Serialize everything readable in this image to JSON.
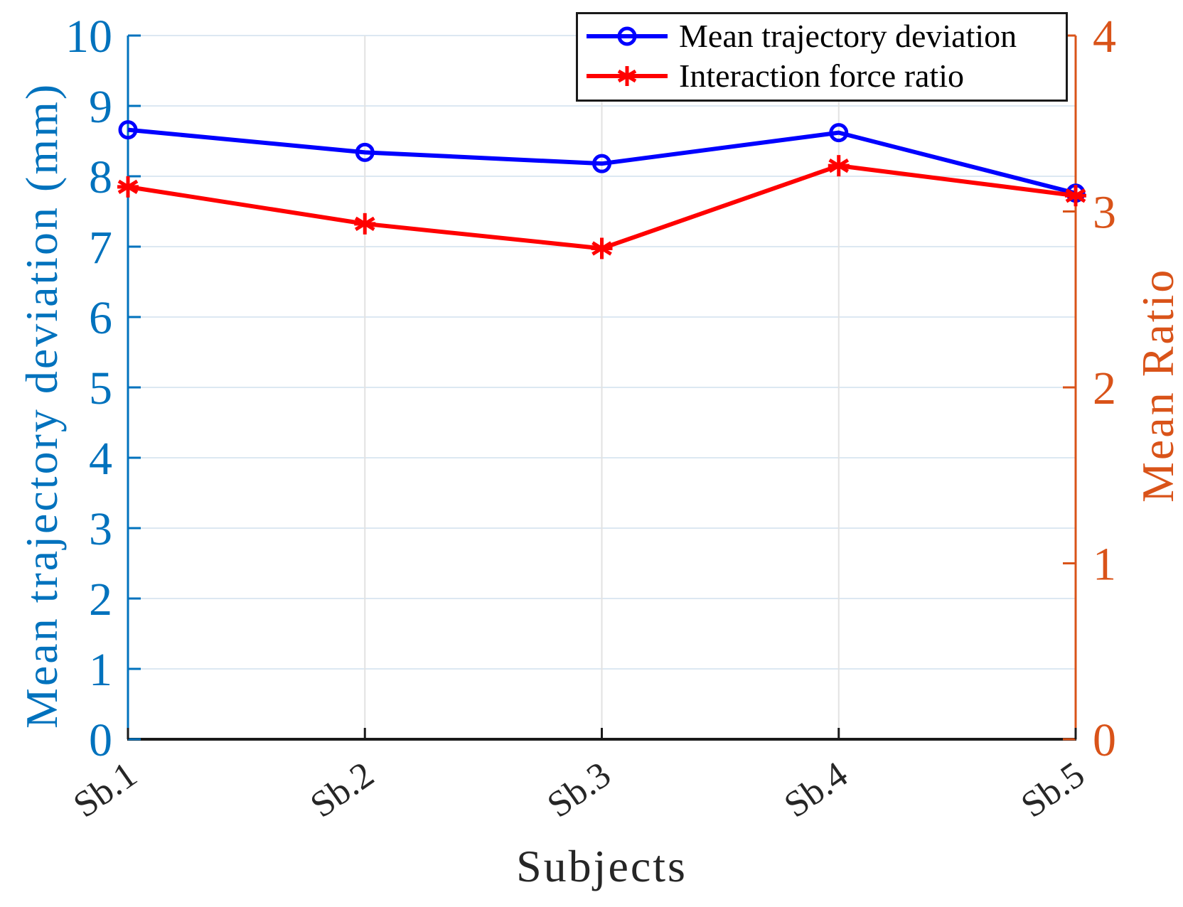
{
  "chart_data": {
    "type": "line",
    "title": "",
    "categories": [
      "Sb.1",
      "Sb.2",
      "Sb.3",
      "Sb.4",
      "Sb.5"
    ],
    "series": [
      {
        "name": "Mean trajectory deviation",
        "axis": "left",
        "marker": "circle",
        "color": "#0000ff",
        "values": [
          8.66,
          8.34,
          8.18,
          8.62,
          7.76
        ]
      },
      {
        "name": "Interaction force ratio",
        "axis": "right",
        "marker": "asterisk",
        "color": "#ff0000",
        "values": [
          3.14,
          2.93,
          2.79,
          3.26,
          3.09
        ]
      }
    ],
    "xlabel": "Subjects",
    "ylabel_left": "Mean trajectory deviation (mm)",
    "ylabel_right": "Mean Ratio",
    "ylim_left": [
      0,
      10
    ],
    "yticks_left": [
      0,
      1,
      2,
      3,
      4,
      5,
      6,
      7,
      8,
      9,
      10
    ],
    "ylim_right": [
      0,
      4
    ],
    "yticks_right": [
      0,
      1,
      2,
      3,
      4
    ],
    "grid": true,
    "legend_position": "top-right",
    "colors": {
      "left_axis": "#0072BD",
      "right_axis": "#D95319",
      "bottom_axis": "#1a1a1a",
      "x_tick_text": "#262626",
      "grid_horizontal": "#dce8f2",
      "grid_vertical": "#e2e2e2",
      "background": "#ffffff"
    }
  }
}
